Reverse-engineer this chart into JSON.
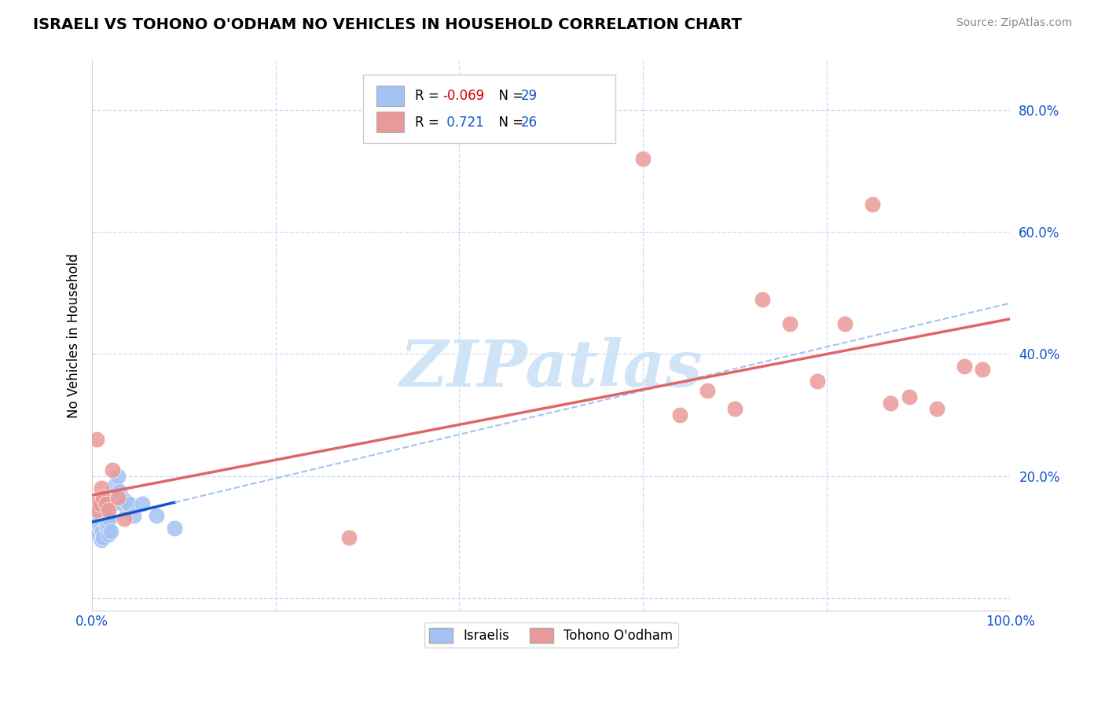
{
  "title": "ISRAELI VS TOHONO O'ODHAM NO VEHICLES IN HOUSEHOLD CORRELATION CHART",
  "source": "Source: ZipAtlas.com",
  "ylabel": "No Vehicles in Household",
  "xlim": [
    0,
    1.0
  ],
  "ylim": [
    -0.02,
    0.88
  ],
  "ytick_positions": [
    0.0,
    0.2,
    0.4,
    0.6,
    0.8
  ],
  "ytick_labels": [
    "",
    "20.0%",
    "40.0%",
    "60.0%",
    "80.0%"
  ],
  "xtick_positions": [
    0.0,
    0.2,
    0.4,
    0.6,
    0.8,
    1.0
  ],
  "xtick_labels": [
    "0.0%",
    "",
    "",
    "",
    "",
    "100.0%"
  ],
  "color_israeli": "#a4c2f4",
  "color_tohono": "#ea9999",
  "color_israeli_line_solid": "#1155cc",
  "color_israeli_line_dash": "#a4c2f4",
  "color_tohono_line": "#e06666",
  "color_grid": "#c9daf8",
  "color_tick_label": "#1155cc",
  "watermark_color": "#d0e4f7",
  "legend_r1_val": "-0.069",
  "legend_n1": "29",
  "legend_r2_val": "0.721",
  "legend_n2": "26",
  "israeli_x": [
    0.003,
    0.004,
    0.005,
    0.006,
    0.007,
    0.008,
    0.009,
    0.01,
    0.011,
    0.012,
    0.013,
    0.014,
    0.015,
    0.016,
    0.017,
    0.018,
    0.019,
    0.02,
    0.022,
    0.025,
    0.028,
    0.03,
    0.033,
    0.036,
    0.04,
    0.045,
    0.055,
    0.07,
    0.09
  ],
  "israeli_y": [
    0.115,
    0.12,
    0.13,
    0.125,
    0.105,
    0.135,
    0.115,
    0.095,
    0.11,
    0.1,
    0.145,
    0.14,
    0.12,
    0.125,
    0.115,
    0.105,
    0.13,
    0.11,
    0.155,
    0.185,
    0.2,
    0.175,
    0.155,
    0.16,
    0.155,
    0.135,
    0.155,
    0.135,
    0.115
  ],
  "tohono_x": [
    0.003,
    0.005,
    0.006,
    0.008,
    0.01,
    0.012,
    0.015,
    0.018,
    0.022,
    0.028,
    0.035,
    0.28,
    0.6,
    0.64,
    0.67,
    0.7,
    0.73,
    0.76,
    0.79,
    0.82,
    0.85,
    0.87,
    0.89,
    0.92,
    0.95,
    0.97
  ],
  "tohono_y": [
    0.155,
    0.26,
    0.145,
    0.155,
    0.18,
    0.165,
    0.155,
    0.145,
    0.21,
    0.165,
    0.13,
    0.1,
    0.72,
    0.3,
    0.34,
    0.31,
    0.49,
    0.45,
    0.355,
    0.45,
    0.645,
    0.32,
    0.33,
    0.31,
    0.38,
    0.375
  ]
}
